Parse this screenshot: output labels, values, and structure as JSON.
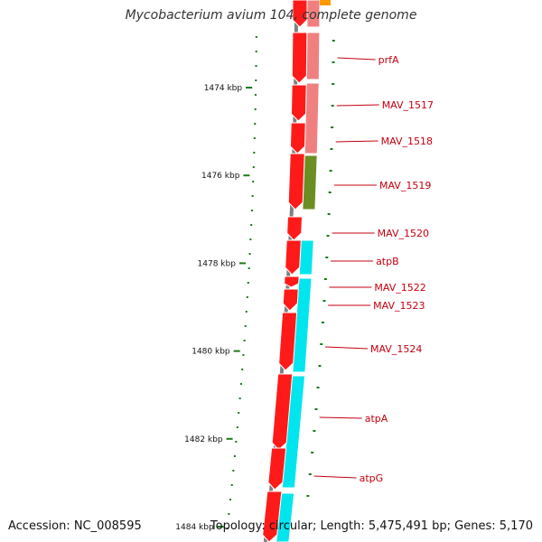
{
  "header": {
    "title": "Mycobacterium avium 104, complete genome"
  },
  "footer": {
    "accession": "Accession: NC_008595",
    "summary": "Topology: circular; Length: 5,475,491 bp; Genes: 5,170"
  },
  "colors": {
    "backbone": "#808080",
    "cds": "#ff1a1a",
    "cds_dark": "#cc0000",
    "cog_pink": "#f08080",
    "cog_olive": "#6b8e23",
    "cog_cyan": "#00e5ee",
    "cog_orange": "#ff9900",
    "tick": "#1a7a1a",
    "label": "#c4000f"
  },
  "map": {
    "position_marks_kbp": [
      {
        "label": "1474 kbp",
        "kbp": 1474
      },
      {
        "label": "1476 kbp",
        "kbp": 1476
      },
      {
        "label": "1478 kbp",
        "kbp": 1478
      },
      {
        "label": "1480 kbp",
        "kbp": 1480
      },
      {
        "label": "1482 kbp",
        "kbp": 1482
      },
      {
        "label": "1484 kbp",
        "kbp": 1484
      }
    ],
    "genes": [
      {
        "name": "prfA"
      },
      {
        "name": "MAV_1517"
      },
      {
        "name": "MAV_1518"
      },
      {
        "name": "MAV_1519"
      },
      {
        "name": "MAV_1520"
      },
      {
        "name": "atpB"
      },
      {
        "name": "MAV_1522"
      },
      {
        "name": "MAV_1523"
      },
      {
        "name": "MAV_1524"
      },
      {
        "name": "atpA"
      },
      {
        "name": "atpG"
      }
    ]
  }
}
